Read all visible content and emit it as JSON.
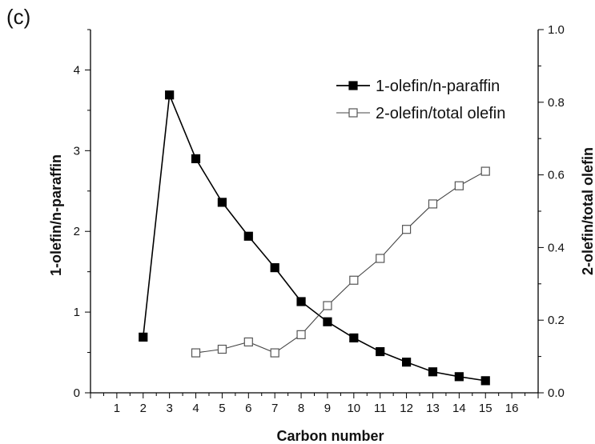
{
  "panel_label": "(c)",
  "chart_data": {
    "type": "line",
    "xlabel": "Carbon number",
    "ylabel_left": "1-olefin/n-paraffin",
    "ylabel_right": "2-olefin/total olefin",
    "xlim": [
      0,
      17
    ],
    "xticks": [
      1,
      2,
      3,
      4,
      5,
      6,
      7,
      8,
      9,
      10,
      11,
      12,
      13,
      14,
      15,
      16
    ],
    "ylim_left": [
      0,
      4.5
    ],
    "yticks_left": [
      0,
      1,
      2,
      3,
      4
    ],
    "ylim_right": [
      0.0,
      1.0
    ],
    "yticks_right": [
      "0.0",
      "0.2",
      "0.4",
      "0.6",
      "0.8",
      "1.0"
    ],
    "grid": false,
    "legend_position": "top-right",
    "series": [
      {
        "name": "1-olefin/n-paraffin",
        "axis": "left",
        "marker": "filled-square",
        "color": "#000000",
        "x": [
          2,
          3,
          4,
          5,
          6,
          7,
          8,
          9,
          10,
          11,
          12,
          13,
          14,
          15
        ],
        "y": [
          0.69,
          3.69,
          2.9,
          2.36,
          1.94,
          1.55,
          1.13,
          0.88,
          0.68,
          0.51,
          0.38,
          0.26,
          0.2,
          0.15
        ]
      },
      {
        "name": "2-olefin/total olefin",
        "axis": "right",
        "marker": "open-square",
        "color": "#444444",
        "x": [
          4,
          5,
          6,
          7,
          8,
          9,
          10,
          11,
          12,
          13,
          14,
          15
        ],
        "y": [
          0.11,
          0.12,
          0.14,
          0.11,
          0.16,
          0.24,
          0.31,
          0.37,
          0.45,
          0.52,
          0.57,
          0.61
        ]
      }
    ]
  }
}
